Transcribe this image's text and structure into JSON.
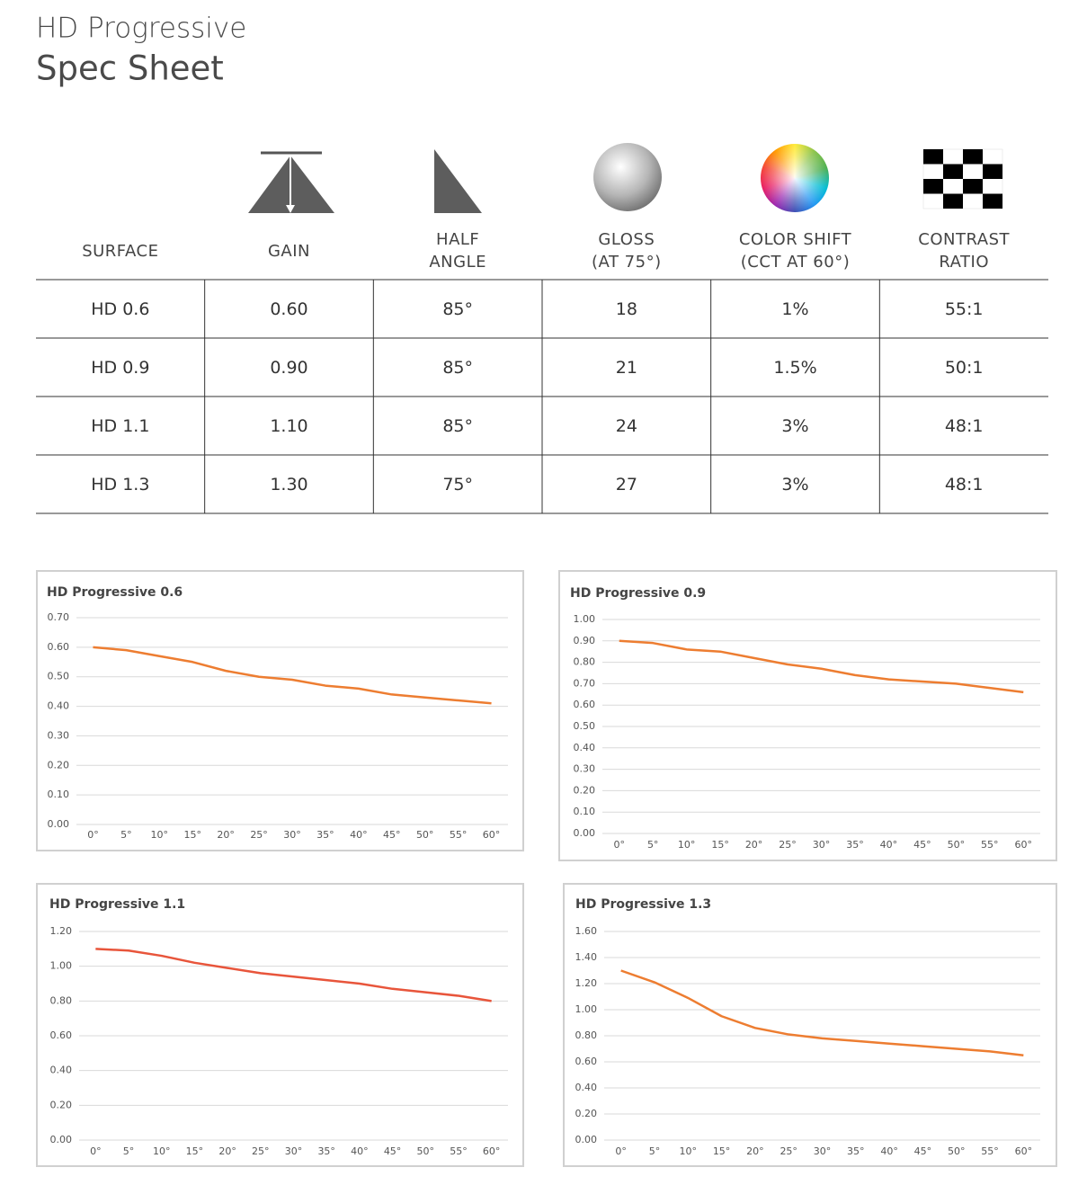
{
  "header": {
    "title": "HD Progressive",
    "subtitle": "Spec Sheet"
  },
  "table": {
    "columns": [
      [
        "SURFACE"
      ],
      [
        "GAIN"
      ],
      [
        "HALF",
        "ANGLE"
      ],
      [
        "GLOSS",
        "(AT 75°)"
      ],
      [
        "COLOR SHIFT",
        "(CCT AT 60°)"
      ],
      [
        "CONTRAST",
        "RATIO"
      ]
    ],
    "rows": [
      [
        "HD 0.6",
        "0.60",
        "85°",
        "18",
        "1%",
        "55:1"
      ],
      [
        "HD 0.9",
        "0.90",
        "85°",
        "21",
        "1.5%",
        "50:1"
      ],
      [
        "HD 1.1",
        "1.10",
        "85°",
        "24",
        "3%",
        "48:1"
      ],
      [
        "HD 1.3",
        "1.30",
        "75°",
        "27",
        "3%",
        "48:1"
      ]
    ]
  },
  "chart_data": [
    {
      "type": "line",
      "title": "HD Progressive 0.6",
      "color": "#ed7d31",
      "grid": true,
      "categories": [
        "0°",
        "5°",
        "10°",
        "15°",
        "20°",
        "25°",
        "30°",
        "35°",
        "40°",
        "45°",
        "50°",
        "55°",
        "60°"
      ],
      "values": [
        0.6,
        0.59,
        0.57,
        0.55,
        0.52,
        0.5,
        0.49,
        0.47,
        0.46,
        0.44,
        0.43,
        0.42,
        0.41
      ],
      "ylim": [
        0,
        0.7
      ],
      "yticks": [
        {
          "value": 0,
          "label": "0.00"
        },
        {
          "value": 0.1,
          "label": "0.10"
        },
        {
          "value": 0.2,
          "label": "0.20"
        },
        {
          "value": 0.3,
          "label": "0.30"
        },
        {
          "value": 0.4,
          "label": "0.40"
        },
        {
          "value": 0.5,
          "label": "0.50"
        },
        {
          "value": 0.6,
          "label": "0.60"
        },
        {
          "value": 0.7,
          "label": "0.70"
        }
      ]
    },
    {
      "type": "line",
      "title": "HD Progressive 0.9",
      "color": "#ed7d31",
      "grid": true,
      "categories": [
        "0°",
        "5°",
        "10°",
        "15°",
        "20°",
        "25°",
        "30°",
        "35°",
        "40°",
        "45°",
        "50°",
        "55°",
        "60°"
      ],
      "values": [
        0.9,
        0.89,
        0.86,
        0.85,
        0.82,
        0.79,
        0.77,
        0.74,
        0.72,
        0.71,
        0.7,
        0.68,
        0.66
      ],
      "ylim": [
        0,
        1
      ],
      "yticks": [
        {
          "value": 0,
          "label": "0.00"
        },
        {
          "value": 0.1,
          "label": "0.10"
        },
        {
          "value": 0.2,
          "label": "0.20"
        },
        {
          "value": 0.3,
          "label": "0.30"
        },
        {
          "value": 0.4,
          "label": "0.40"
        },
        {
          "value": 0.5,
          "label": "0.50"
        },
        {
          "value": 0.6,
          "label": "0.60"
        },
        {
          "value": 0.7,
          "label": "0.70"
        },
        {
          "value": 0.8,
          "label": "0.80"
        },
        {
          "value": 0.9,
          "label": "0.90"
        },
        {
          "value": 1,
          "label": "1.00"
        }
      ]
    },
    {
      "type": "line",
      "title": "HD Progressive 1.1",
      "color": "#e8553b",
      "grid": true,
      "categories": [
        "0°",
        "5°",
        "10°",
        "15°",
        "20°",
        "25°",
        "30°",
        "35°",
        "40°",
        "45°",
        "50°",
        "55°",
        "60°"
      ],
      "values": [
        1.1,
        1.09,
        1.06,
        1.02,
        0.99,
        0.96,
        0.94,
        0.92,
        0.9,
        0.87,
        0.85,
        0.83,
        0.8
      ],
      "ylim": [
        0,
        1.2
      ],
      "yticks": [
        {
          "value": 0,
          "label": "0.00"
        },
        {
          "value": 0.2,
          "label": "0.20"
        },
        {
          "value": 0.4,
          "label": "0.40"
        },
        {
          "value": 0.6,
          "label": "0.60"
        },
        {
          "value": 0.8,
          "label": "0.80"
        },
        {
          "value": 1,
          "label": "1.00"
        },
        {
          "value": 1.2,
          "label": "1.20"
        }
      ]
    },
    {
      "type": "line",
      "title": "HD Progressive 1.3",
      "color": "#ed7d31",
      "grid": true,
      "categories": [
        "0°",
        "5°",
        "10°",
        "15°",
        "20°",
        "25°",
        "30°",
        "35°",
        "40°",
        "45°",
        "50°",
        "55°",
        "60°"
      ],
      "values": [
        1.3,
        1.21,
        1.09,
        0.95,
        0.86,
        0.81,
        0.78,
        0.76,
        0.74,
        0.72,
        0.7,
        0.68,
        0.65
      ],
      "ylim": [
        0,
        1.6
      ],
      "yticks": [
        {
          "value": 0,
          "label": "0.00"
        },
        {
          "value": 0.2,
          "label": "0.20"
        },
        {
          "value": 0.4,
          "label": "0.40"
        },
        {
          "value": 0.6,
          "label": "0.60"
        },
        {
          "value": 0.8,
          "label": "0.80"
        },
        {
          "value": 1,
          "label": "1.00"
        },
        {
          "value": 1.2,
          "label": "1.20"
        },
        {
          "value": 1.4,
          "label": "1.40"
        },
        {
          "value": 1.6,
          "label": "1.60"
        }
      ]
    }
  ]
}
